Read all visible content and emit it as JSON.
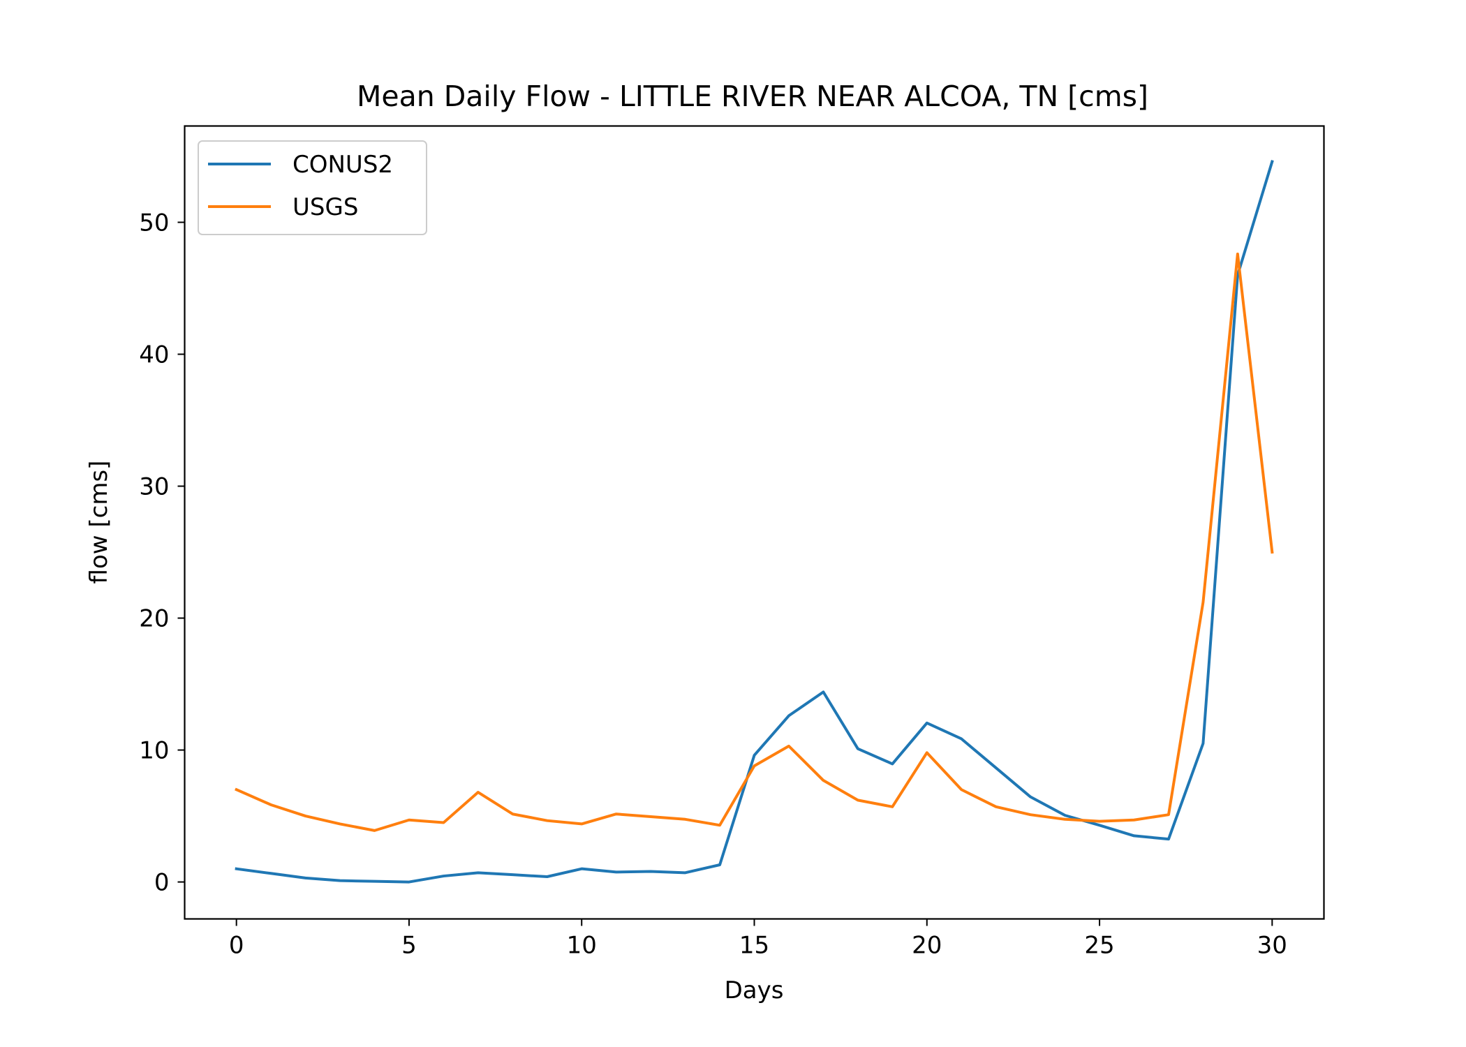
{
  "chart_data": {
    "type": "line",
    "title": "Mean Daily Flow - LITTLE RIVER NEAR ALCOA, TN [cms]",
    "xlabel": "Days",
    "ylabel": "flow [cms]",
    "xlim": [
      -1.5,
      31.5
    ],
    "ylim": [
      -2.8,
      57.3
    ],
    "xticks": [
      0,
      5,
      10,
      15,
      20,
      25,
      30
    ],
    "yticks": [
      0,
      10,
      20,
      30,
      40,
      50
    ],
    "grid": false,
    "legend_position": "upper-left",
    "x": [
      0,
      1,
      2,
      3,
      4,
      5,
      6,
      7,
      8,
      9,
      10,
      11,
      12,
      13,
      14,
      15,
      16,
      17,
      18,
      19,
      20,
      21,
      22,
      23,
      24,
      25,
      26,
      27,
      28,
      29,
      30
    ],
    "series": [
      {
        "name": "CONUS2",
        "color": "#1f77b4",
        "values": [
          1.0,
          0.65,
          0.3,
          0.1,
          0.05,
          0.0,
          0.45,
          0.7,
          0.55,
          0.4,
          1.0,
          0.75,
          0.8,
          0.7,
          1.3,
          9.6,
          12.6,
          14.4,
          10.1,
          8.95,
          12.05,
          10.85,
          8.65,
          6.45,
          5.05,
          4.3,
          3.5,
          3.25,
          10.5,
          46.0,
          54.6
        ]
      },
      {
        "name": "USGS",
        "color": "#ff7f0e",
        "values": [
          7.0,
          5.85,
          5.0,
          4.4,
          3.9,
          4.7,
          4.5,
          6.8,
          5.15,
          4.65,
          4.4,
          5.15,
          4.95,
          4.75,
          4.3,
          8.8,
          10.3,
          7.7,
          6.2,
          5.7,
          9.8,
          7.0,
          5.7,
          5.1,
          4.75,
          4.6,
          4.7,
          5.1,
          21.2,
          47.6,
          25.0
        ]
      }
    ]
  }
}
